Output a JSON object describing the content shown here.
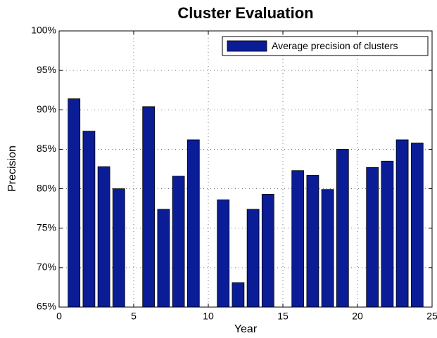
{
  "chart_data": {
    "type": "bar",
    "title": "Cluster Evaluation",
    "x_label": "Year",
    "y_label": "Precision",
    "x": [
      1,
      2,
      3,
      4,
      6,
      7,
      8,
      9,
      11,
      12,
      13,
      14,
      16,
      17,
      18,
      19,
      21,
      22,
      23,
      24
    ],
    "series": [
      {
        "name": "Average precision of clusters",
        "color": "#0b1d96",
        "values": [
          91.4,
          87.3,
          82.8,
          80.0,
          90.4,
          77.4,
          81.6,
          86.2,
          78.6,
          68.1,
          77.4,
          79.3,
          82.3,
          81.7,
          79.9,
          85.0,
          82.7,
          83.5,
          86.2,
          85.8
        ]
      }
    ],
    "xlim": [
      0,
      25
    ],
    "xticks": [
      0,
      5,
      10,
      15,
      20,
      25
    ],
    "ylim": [
      65,
      100
    ],
    "yticks": [
      {
        "value": 65,
        "label": "65%"
      },
      {
        "value": 70,
        "label": "70%"
      },
      {
        "value": 75,
        "label": "75%"
      },
      {
        "value": 80,
        "label": "80%"
      },
      {
        "value": 85,
        "label": "85%"
      },
      {
        "value": 90,
        "label": "90%"
      },
      {
        "value": 95,
        "label": "95%"
      },
      {
        "value": 100,
        "label": "100%"
      }
    ],
    "grid": true,
    "legend": "top-right"
  }
}
